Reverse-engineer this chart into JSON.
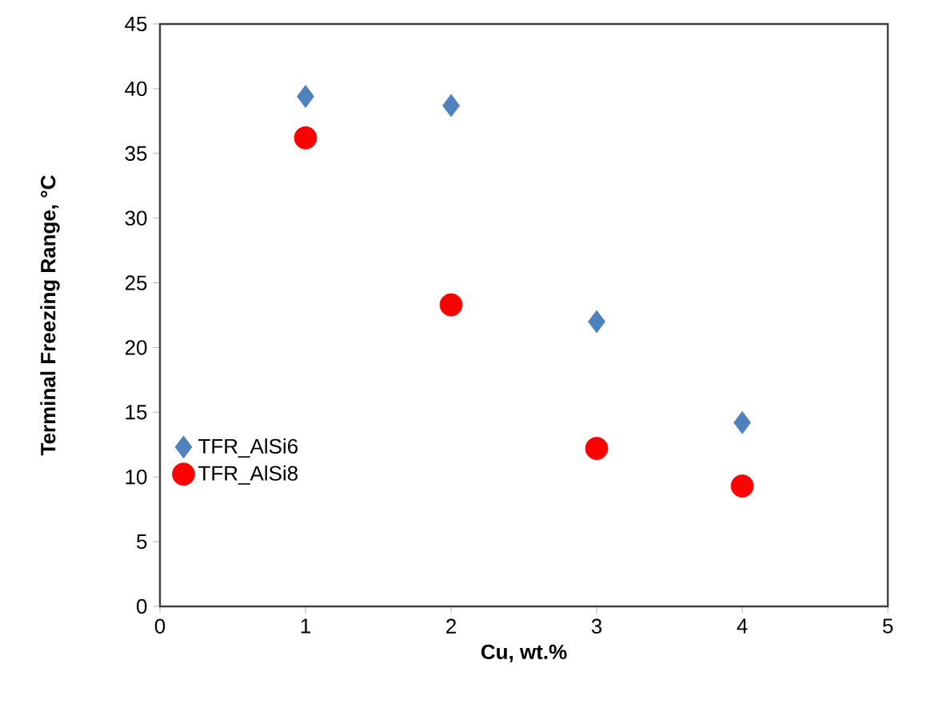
{
  "chart_data": {
    "type": "scatter",
    "xlabel": "Cu, wt.%",
    "ylabel": "Terminal Freezing Range, °C",
    "x": [
      1,
      2,
      3,
      4
    ],
    "series": [
      {
        "name": "TFR_AlSi6",
        "color": "#4f81bd",
        "marker": "diamond",
        "values": [
          39.4,
          38.7,
          22.0,
          14.2
        ]
      },
      {
        "name": "TFR_AlSi8",
        "color": "#ff0000",
        "marker": "circle",
        "values": [
          36.2,
          23.3,
          12.2,
          9.3
        ]
      }
    ],
    "xlim": [
      0,
      5
    ],
    "xticks": [
      0,
      1,
      2,
      3,
      4,
      5
    ],
    "ylim": [
      0,
      45
    ],
    "yticks": [
      0,
      5,
      10,
      15,
      20,
      25,
      30,
      35,
      40,
      45
    ],
    "grid": false,
    "legend": "left"
  }
}
